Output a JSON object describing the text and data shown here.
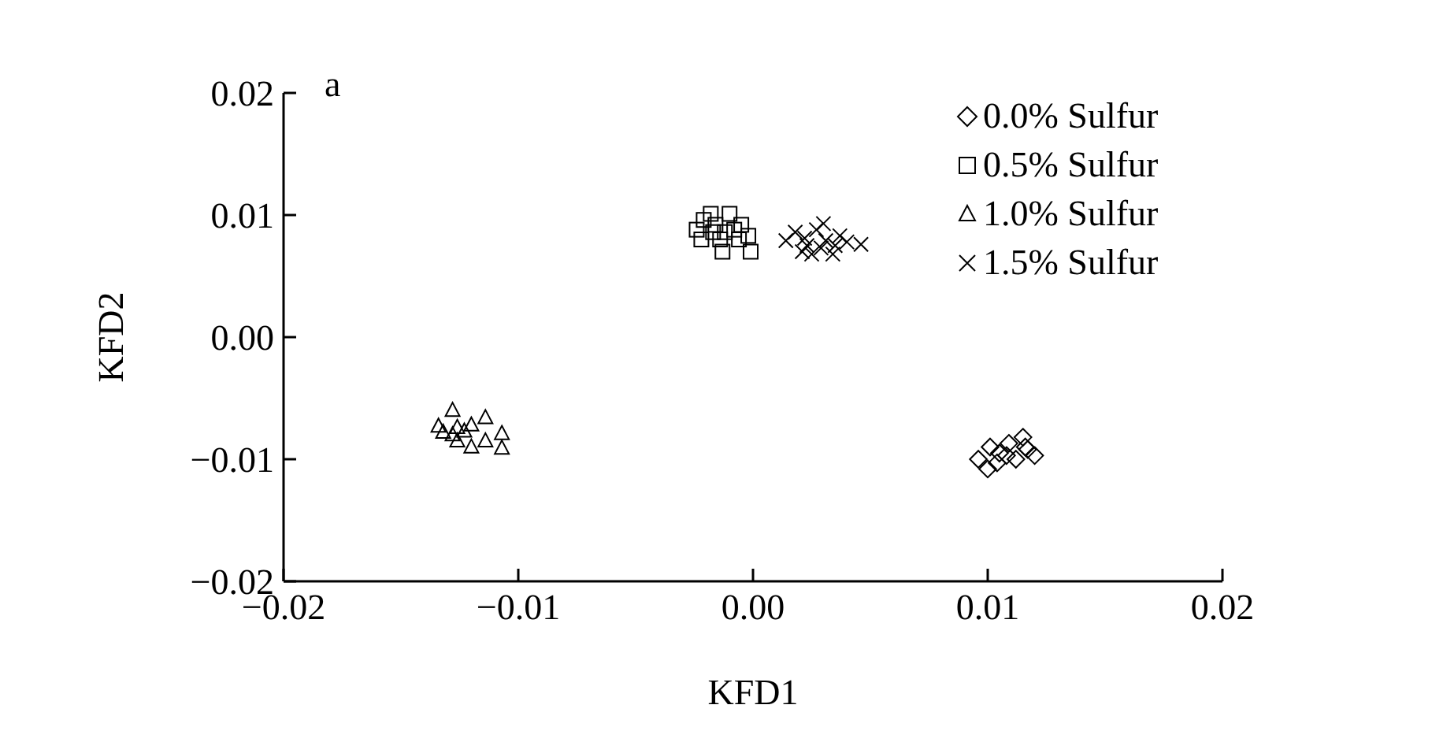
{
  "chart_data": {
    "type": "scatter",
    "xlabel": "KFD1",
    "ylabel": "KFD2",
    "annotations": [
      "a"
    ],
    "legend": "top right",
    "grid": false,
    "xlim": [
      -0.02,
      0.02
    ],
    "ylim": [
      -0.02,
      0.02
    ],
    "xticks": [
      {
        "value": -0.02,
        "label": "−0.02"
      },
      {
        "value": -0.01,
        "label": "−0.01"
      },
      {
        "value": 0,
        "label": "0.00"
      },
      {
        "value": 0.01,
        "label": "0.01"
      },
      {
        "value": 0.02,
        "label": "0.02"
      }
    ],
    "yticks": [
      {
        "value": -0.02,
        "label": "−0.02"
      },
      {
        "value": -0.01,
        "label": "−0.01"
      },
      {
        "value": 0,
        "label": "0.00"
      },
      {
        "value": 0.01,
        "label": "0.01"
      },
      {
        "value": 0.02,
        "label": "0.02"
      }
    ],
    "series": [
      {
        "name": "0.0% Sulfur",
        "color": "#000000",
        "marker": "diamond",
        "x": [
          0.0096,
          0.0101,
          0.01,
          0.0105,
          0.0109,
          0.0112,
          0.0115,
          0.0117,
          0.012,
          0.0104,
          0.0108,
          0.0116
        ],
        "values": [
          -0.01,
          -0.009,
          -0.0108,
          -0.0095,
          -0.0087,
          -0.01,
          -0.0082,
          -0.0092,
          -0.0097,
          -0.0103,
          -0.0097,
          -0.009
        ]
      },
      {
        "name": "0.5% Sulfur",
        "color": "#000000",
        "marker": "square",
        "x": [
          -0.0024,
          -0.0021,
          -0.0018,
          -0.0016,
          -0.0014,
          -0.0013,
          -0.001,
          -0.0008,
          -0.0005,
          -0.0002,
          -0.0001,
          -0.0022,
          -0.0017,
          -0.0012,
          -0.0006
        ],
        "values": [
          0.0088,
          0.0096,
          0.0101,
          0.0092,
          0.008,
          0.007,
          0.0101,
          0.0088,
          0.0092,
          0.0083,
          0.007,
          0.008,
          0.0086,
          0.0086,
          0.008
        ]
      },
      {
        "name": "1.0% Sulfur",
        "color": "#000000",
        "marker": "triangle",
        "x": [
          -0.0134,
          -0.0128,
          -0.0132,
          -0.0126,
          -0.0126,
          -0.012,
          -0.012,
          -0.0114,
          -0.0114,
          -0.0107,
          -0.0107,
          -0.0123,
          -0.0128
        ],
        "values": [
          -0.0073,
          -0.006,
          -0.0078,
          -0.0074,
          -0.0085,
          -0.0072,
          -0.009,
          -0.0066,
          -0.0085,
          -0.0079,
          -0.0091,
          -0.0077,
          -0.008
        ]
      },
      {
        "name": "1.5% Sulfur",
        "color": "#000000",
        "marker": "cross",
        "x": [
          0.0014,
          0.0018,
          0.0021,
          0.0023,
          0.0027,
          0.003,
          0.0031,
          0.0034,
          0.0037,
          0.004,
          0.0046,
          0.0025,
          0.0029,
          0.0035,
          0.0022
        ],
        "values": [
          0.0079,
          0.0086,
          0.007,
          0.0075,
          0.0088,
          0.0093,
          0.0079,
          0.0068,
          0.0083,
          0.0078,
          0.0076,
          0.0068,
          0.0073,
          0.0075,
          0.0081
        ]
      }
    ]
  }
}
